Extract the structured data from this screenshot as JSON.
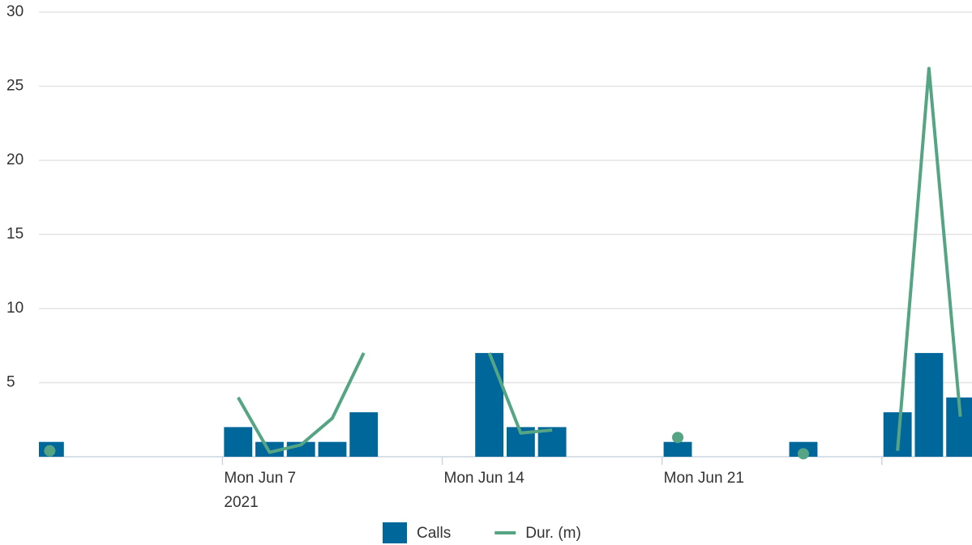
{
  "chart_data": {
    "type": "bar_line",
    "x": [
      "2021-06-01",
      "2021-06-02",
      "2021-06-03",
      "2021-06-04",
      "2021-06-05",
      "2021-06-06",
      "2021-06-07",
      "2021-06-08",
      "2021-06-09",
      "2021-06-10",
      "2021-06-11",
      "2021-06-12",
      "2021-06-13",
      "2021-06-14",
      "2021-06-15",
      "2021-06-16",
      "2021-06-17",
      "2021-06-18",
      "2021-06-19",
      "2021-06-20",
      "2021-06-21",
      "2021-06-22",
      "2021-06-23",
      "2021-06-24",
      "2021-06-25",
      "2021-06-26",
      "2021-06-27",
      "2021-06-28",
      "2021-06-29",
      "2021-06-30"
    ],
    "series": [
      {
        "name": "Calls",
        "type": "bar",
        "color": "#00679a",
        "values": [
          1,
          null,
          null,
          null,
          null,
          null,
          2,
          1,
          1,
          1,
          3,
          null,
          null,
          null,
          7,
          2,
          2,
          null,
          null,
          null,
          1,
          null,
          null,
          null,
          1,
          null,
          null,
          3,
          7,
          4
        ]
      },
      {
        "name": "Dur. (m)",
        "type": "line",
        "color": "#55a584",
        "values": [
          0.4,
          null,
          null,
          null,
          null,
          null,
          4,
          0.3,
          0.8,
          2.6,
          7,
          null,
          null,
          null,
          7,
          1.6,
          1.8,
          null,
          null,
          null,
          1.3,
          null,
          null,
          null,
          0.2,
          null,
          null,
          0.4,
          26.2,
          2.7
        ]
      }
    ],
    "xlim": [
      "2021-06-01",
      "2021-07-01"
    ],
    "xticks": [
      {
        "value": "2021-06-07",
        "label": "Mon Jun 7"
      },
      {
        "value": "2021-06-14",
        "label": "Mon Jun 14"
      },
      {
        "value": "2021-06-21",
        "label": "Mon Jun 21"
      },
      {
        "value": "2021-06-28",
        "label": null
      }
    ],
    "x_year_label": "2021",
    "ylim": [
      0,
      30
    ],
    "yticks": [
      5,
      10,
      15,
      20,
      25,
      30
    ],
    "grid": true,
    "legend": "bottom"
  }
}
